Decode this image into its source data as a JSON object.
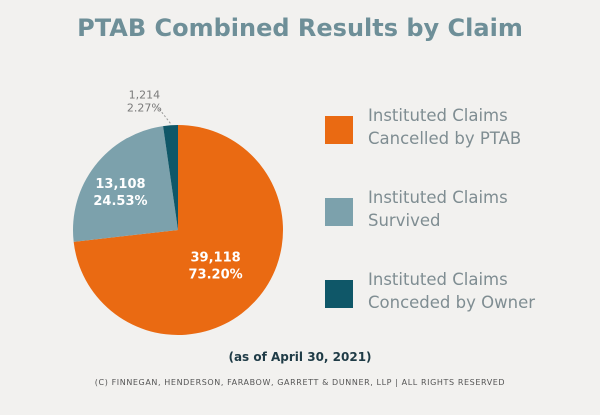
{
  "chart_data": {
    "type": "pie",
    "title": "PTAB Combined Results by Claim",
    "slices": [
      {
        "label": "Instituted Claims\nCancelled by PTAB",
        "value": 39118,
        "value_label": "39,118",
        "percent_label": "73.20%",
        "color": "#ea6a12"
      },
      {
        "label": "Instituted Claims\nSurvived",
        "value": 13108,
        "value_label": "13,108",
        "percent_label": "24.53%",
        "color": "#7ca1ac"
      },
      {
        "label": "Instituted Claims\nConceded by Owner",
        "value": 1214,
        "value_label": "1,214",
        "percent_label": "2.27%",
        "color": "#0f5768"
      }
    ],
    "legend_position": "right"
  },
  "footer": {
    "date_note": "(as of April 30, 2021)",
    "copyright": "(C) FINNEGAN, HENDERSON, FARABOW, GARRETT & DUNNER, LLP | ALL RIGHTS RESERVED"
  }
}
